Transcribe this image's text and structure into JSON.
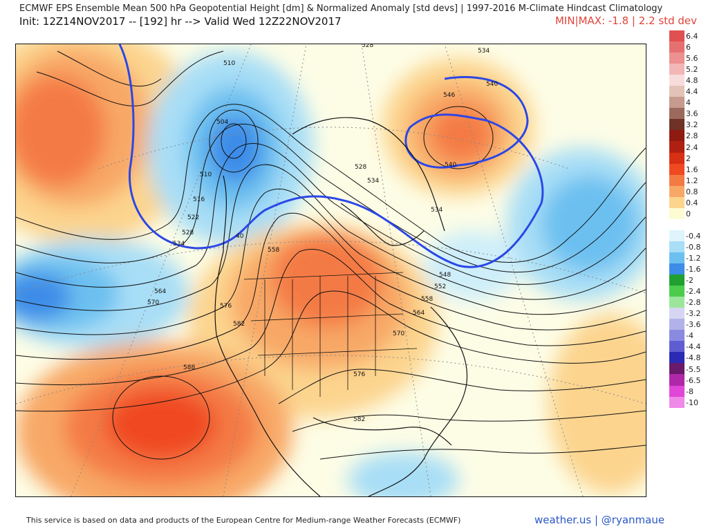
{
  "header": {
    "title": "ECMWF EPS Ensemble Mean 500 hPa Geopotential Height [dm] & Normalized Anomaly [std devs] | 1997-2016 M-Climate Hindcast Climatology",
    "subtitle": "Init: 12Z14NOV2017 -- [192] hr --> Valid Wed 12Z22NOV2017",
    "minmax": "MIN|MAX: -1.8 | 2.2 std dev"
  },
  "colors": {
    "warm_strong": "#c0281a",
    "warm_mid": "#f06a3a",
    "warm_light": "#f9b070",
    "warm_pale": "#fdeaa6",
    "neutral": "#fdfde6",
    "cool_pale": "#cdeefa",
    "cool_light": "#8fd3f4",
    "cool_mid": "#54a8ec",
    "cool_strong": "#3a7fe0",
    "highlight_contour": "#2b47e6"
  },
  "contour_labels": [
    {
      "text": "528"
    },
    {
      "text": "534"
    },
    {
      "text": "510"
    },
    {
      "text": "504"
    },
    {
      "text": "546"
    },
    {
      "text": "540"
    },
    {
      "text": "540"
    },
    {
      "text": "528"
    },
    {
      "text": "534"
    },
    {
      "text": "534"
    },
    {
      "text": "510"
    },
    {
      "text": "516"
    },
    {
      "text": "522"
    },
    {
      "text": "528"
    },
    {
      "text": "534"
    },
    {
      "text": "40"
    },
    {
      "text": "558"
    },
    {
      "text": "548"
    },
    {
      "text": "552"
    },
    {
      "text": "558"
    },
    {
      "text": "564"
    },
    {
      "text": "564"
    },
    {
      "text": "570"
    },
    {
      "text": "576"
    },
    {
      "text": "582"
    },
    {
      "text": "570"
    },
    {
      "text": "576"
    },
    {
      "text": "588"
    },
    {
      "text": "582"
    }
  ],
  "colorbar": {
    "entries": [
      {
        "label": "6.4",
        "color": "#e05050"
      },
      {
        "label": "6",
        "color": "#e67070"
      },
      {
        "label": "5.6",
        "color": "#ec9090"
      },
      {
        "label": "5.2",
        "color": "#f3b6b6"
      },
      {
        "label": "4.8",
        "color": "#f8dcdc"
      },
      {
        "label": "4.4",
        "color": "#e3c3b8"
      },
      {
        "label": "4",
        "color": "#c69a8c"
      },
      {
        "label": "3.6",
        "color": "#9c6a5c"
      },
      {
        "label": "3.2",
        "color": "#6e3226"
      },
      {
        "label": "2.8",
        "color": "#8e1a10"
      },
      {
        "label": "2.4",
        "color": "#b02012"
      },
      {
        "label": "2",
        "color": "#d83014"
      },
      {
        "label": "1.6",
        "color": "#f04a22"
      },
      {
        "label": "1.2",
        "color": "#f47a44"
      },
      {
        "label": "0.8",
        "color": "#f8a866"
      },
      {
        "label": "0.4",
        "color": "#fcd48e"
      },
      {
        "label": "0",
        "color": "#fdfbd2"
      },
      {
        "label": "",
        "color": "#ffffff"
      },
      {
        "label": "-0.4",
        "color": "#dff4fc"
      },
      {
        "label": "-0.8",
        "color": "#a8def6"
      },
      {
        "label": "-1.2",
        "color": "#6cc0f0"
      },
      {
        "label": "-1.6",
        "color": "#3c8ce8"
      },
      {
        "label": "-2",
        "color": "#1fa030"
      },
      {
        "label": "-2.4",
        "color": "#4ccc4c"
      },
      {
        "label": "-2.8",
        "color": "#9be69b"
      },
      {
        "label": "-3.2",
        "color": "#d6d6f2"
      },
      {
        "label": "-3.6",
        "color": "#b2b2ea"
      },
      {
        "label": "-4",
        "color": "#8a8ae0"
      },
      {
        "label": "-4.4",
        "color": "#5e5ed2"
      },
      {
        "label": "-4.8",
        "color": "#2a2ab4"
      },
      {
        "label": "-5.5",
        "color": "#6a1a6a"
      },
      {
        "label": "-6.5",
        "color": "#b028a8"
      },
      {
        "label": "-8",
        "color": "#e046d8"
      },
      {
        "label": "-10",
        "color": "#f08ae8"
      }
    ]
  },
  "footer": {
    "disclaimer": "This service is based on data and products of the European Centre for Medium-range Weather Forecasts (ECMWF)",
    "credit": "weather.us | @ryanmaue"
  }
}
